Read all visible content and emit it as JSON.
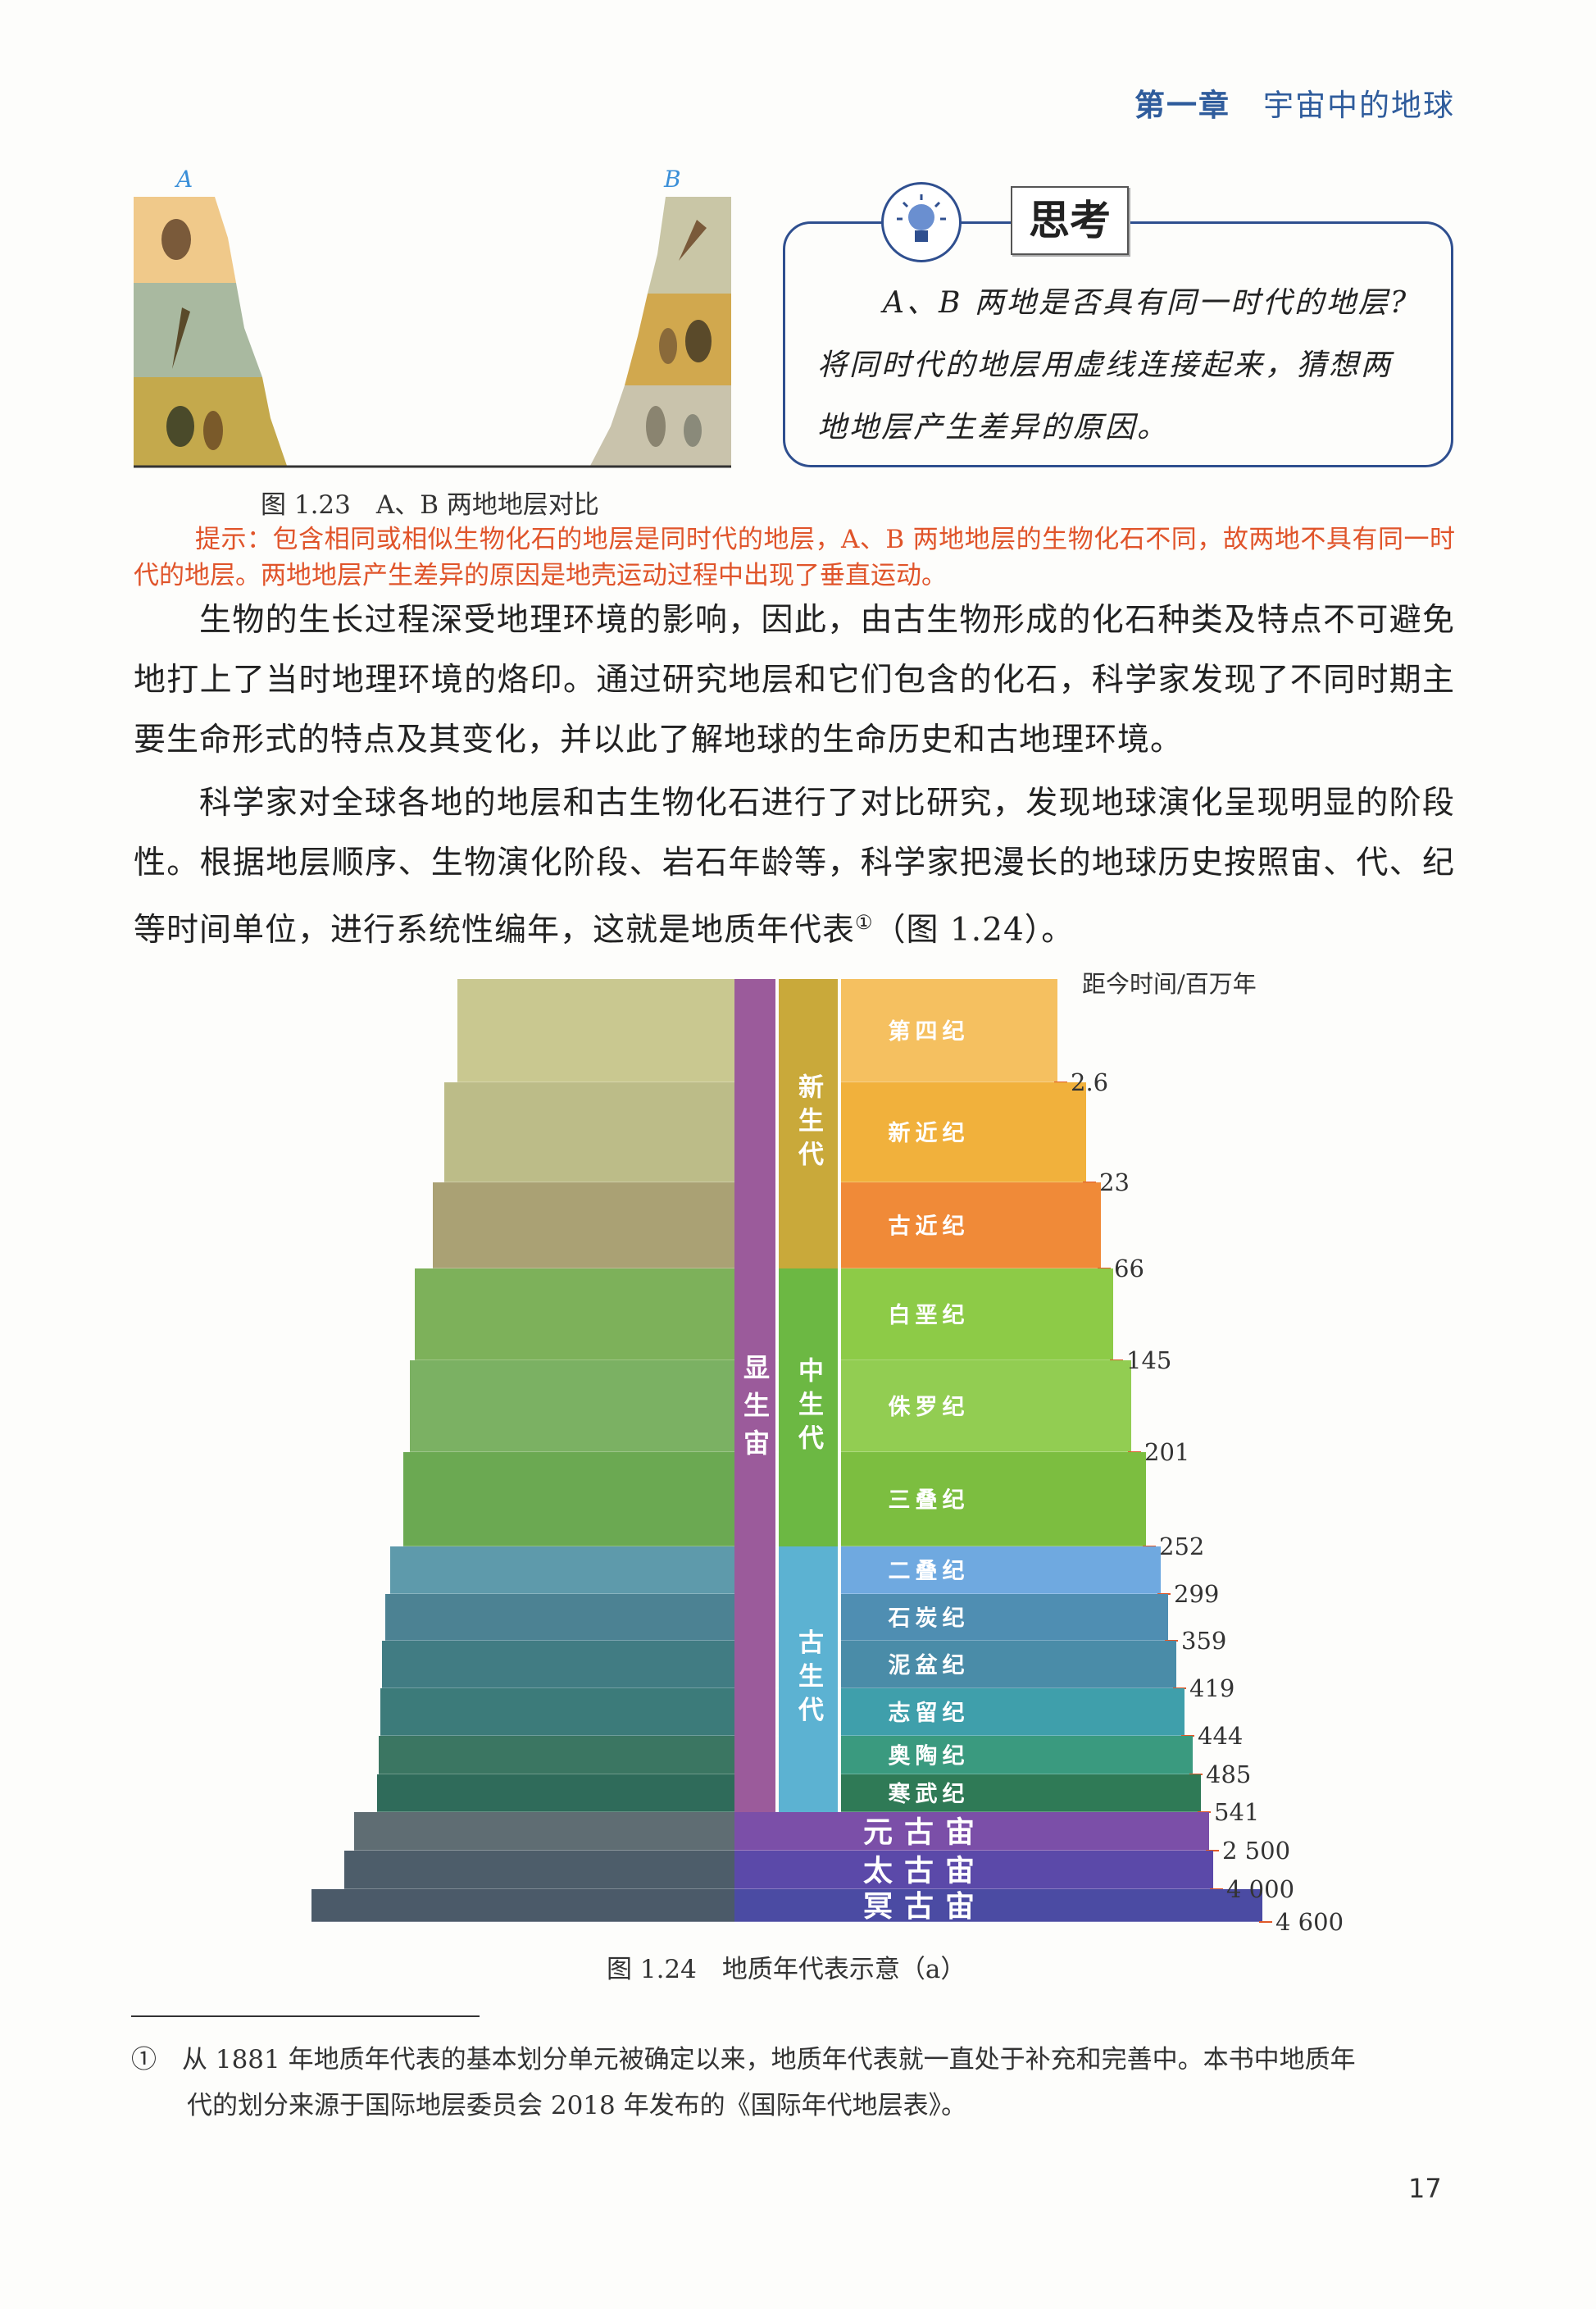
{
  "header": {
    "chapter": "第一章",
    "chapter_title": "宇宙中的地球",
    "color": "#2f5c9c"
  },
  "figure_1_23": {
    "label_a": "A",
    "label_b": "B",
    "caption": "图 1.23　A、B 两地地层对比"
  },
  "think_box": {
    "title": "思考",
    "icon": "lightbulb-icon",
    "lines": [
      "A、B 两地是否具有同一时代的地层?",
      "将同时代的地层用虚线连接起来，猜想两地地层产生差异的原因。"
    ]
  },
  "hint": {
    "text": "提示：包含相同或相似生物化石的地层是同时代的地层，A、B 两地地层的生物化石不同，故两地不具有同一时代的地层。两地地层产生差异的原因是地壳运动过程中出现了垂直运动。",
    "color": "#e0542a"
  },
  "body": {
    "p1": "生物的生长过程深受地理环境的影响，因此，由古生物形成的化石种类及特点不可避免地打上了当时地理环境的烙印。通过研究地层和它们包含的化石，科学家发现了不同时期主要生命形式的特点及其变化，并以此了解地球的生命历史和古地理环境。",
    "p2_pre": "科学家对全球各地的地层和古生物化石进行了对比研究，发现地球演化呈现明显的阶段性。根据地层顺序、生物演化阶段、岩石年龄等，科学家把漫长的地球历史按照宙、代、纪等时间单位，进行系统性编年，这就是地质年代表",
    "p2_mark": "①",
    "p2_post": "（图 1.24）。"
  },
  "figure_1_24": {
    "axis_label": "距今时间/百万年",
    "caption": "图 1.24　地质年代表示意（a）",
    "phanerozoic": {
      "label": "显生宙",
      "color": "#9b5b9b"
    },
    "eras": [
      {
        "label": "新生代",
        "color": "#c9a93a"
      },
      {
        "label": "中生代",
        "color": "#6cb843"
      },
      {
        "label": "古生代",
        "color": "#5cb2d2"
      }
    ],
    "periods": [
      {
        "name": "第四纪",
        "end": "2.6",
        "color": "#f5c060"
      },
      {
        "name": "新近纪",
        "end": "23",
        "color": "#f1b13c"
      },
      {
        "name": "古近纪",
        "end": "66",
        "color": "#f08a38"
      },
      {
        "name": "白垩纪",
        "end": "145",
        "color": "#8dcb47"
      },
      {
        "name": "侏罗纪",
        "end": "201",
        "color": "#92cd52"
      },
      {
        "name": "三叠纪",
        "end": "252",
        "color": "#7cbe40"
      },
      {
        "name": "二叠纪",
        "end": "299",
        "color": "#6fa9e0"
      },
      {
        "name": "石炭纪",
        "end": "359",
        "color": "#4f8eb2"
      },
      {
        "name": "泥盆纪",
        "end": "419",
        "color": "#4a8ca8"
      },
      {
        "name": "志留纪",
        "end": "444",
        "color": "#3f9fab"
      },
      {
        "name": "奥陶纪",
        "end": "485",
        "color": "#3a9a7f"
      },
      {
        "name": "寒武纪",
        "end": "541",
        "color": "#2f7a56"
      }
    ],
    "precambrian": [
      {
        "name": "元古宙",
        "end": "2 500",
        "color": "#7b4fa8"
      },
      {
        "name": "太古宙",
        "end": "4 000",
        "color": "#5b49a9"
      },
      {
        "name": "冥古宙",
        "end": "4 600",
        "color": "#4b4ba3"
      }
    ]
  },
  "footnote": {
    "mark": "①",
    "line1": "从 1881 年地质年代表的基本划分单元被确定以来，地质年代表就一直处于补充和完善中。本书中地质年",
    "line2": "代的划分来源于国际地层委员会 2018 年发布的《国际年代地层表》。"
  },
  "page_number": "17"
}
